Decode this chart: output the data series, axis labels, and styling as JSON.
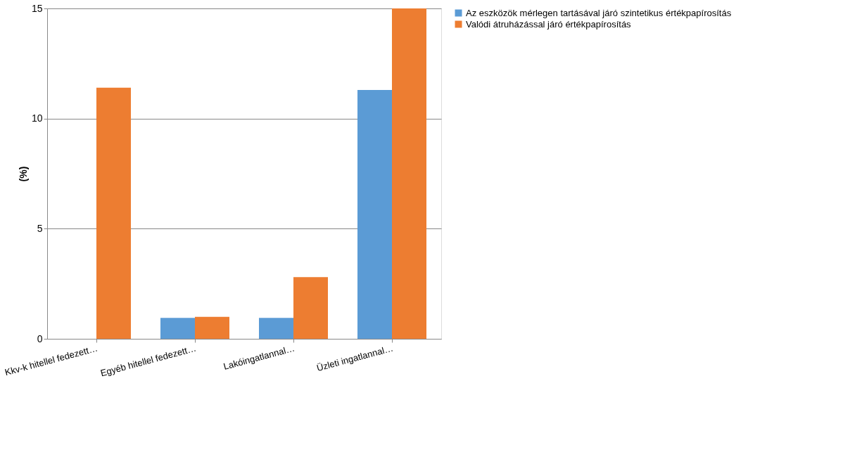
{
  "chart_data": {
    "type": "bar",
    "ylabel": "(%)",
    "categories": [
      "Kkv-k hitellel fedezett…",
      "Egyéb hitellel fedezett…",
      "Lakóingatlannal…",
      "Üzleti ingatlannal…"
    ],
    "series": [
      {
        "name": "Az eszközök mérlegen tartásával járó szintetikus értékpapírosítás",
        "color": "#5b9bd5",
        "values": [
          null,
          0.95,
          0.95,
          11.3
        ]
      },
      {
        "name": "Valódi átruházással járó értékpapírosítás",
        "color": "#ed7d31",
        "values": [
          11.4,
          1.0,
          2.8,
          15.0
        ]
      }
    ],
    "ylim": [
      0,
      15
    ],
    "yticks": [
      0,
      5,
      10,
      15
    ],
    "grid": "y",
    "legend": "right"
  }
}
